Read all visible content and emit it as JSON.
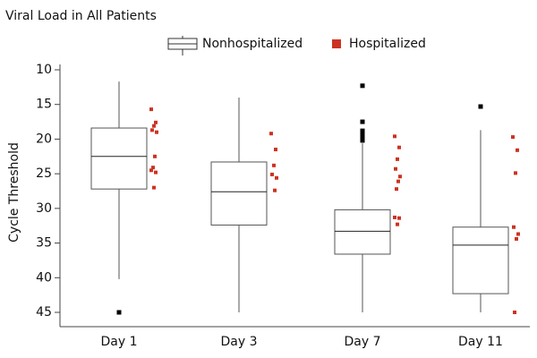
{
  "chart_data": {
    "type": "boxplot",
    "title": "Viral Load in All Patients",
    "y_label": "Cycle Threshold",
    "categories": [
      "Day 1",
      "Day 3",
      "Day 7",
      "Day 11"
    ],
    "ylim": [
      10,
      45
    ],
    "y_inverted": true,
    "yticks": [
      10,
      15,
      20,
      25,
      30,
      35,
      40,
      45
    ],
    "series": [
      {
        "name": "Nonhospitalized",
        "color": "#000000",
        "boxes": [
          {
            "low": 11.7,
            "q1": 18.4,
            "median": 22.5,
            "q3": 27.2,
            "high": 40.2,
            "outliers": [
              45
            ]
          },
          {
            "low": 14,
            "q1": 23.3,
            "median": 27.6,
            "q3": 32.4,
            "high": 45,
            "outliers": []
          },
          {
            "low": 20.6,
            "q1": 30.2,
            "median": 33.3,
            "q3": 36.6,
            "high": 45,
            "outliers": [
              12.3,
              17.5,
              18.8,
              19.3,
              19.8,
              20.2
            ]
          },
          {
            "low": 18.7,
            "q1": 32.7,
            "median": 35.3,
            "q3": 42.3,
            "high": 45,
            "outliers": [
              15.3
            ]
          }
        ]
      },
      {
        "name": "Hospitalized",
        "color": "#cc3322",
        "values": [
          [
            15.7,
            17.6,
            18.1,
            18.7,
            19.0,
            22.5,
            24.1,
            24.5,
            24.8,
            27.0
          ],
          [
            19.2,
            21.5,
            23.8,
            25.1,
            25.6,
            27.4
          ],
          [
            19.6,
            21.2,
            22.9,
            24.3,
            25.4,
            26.1,
            27.2,
            31.3,
            31.4,
            32.3
          ],
          [
            19.7,
            21.6,
            24.9,
            32.7,
            33.7,
            34.4,
            45
          ]
        ]
      }
    ]
  }
}
